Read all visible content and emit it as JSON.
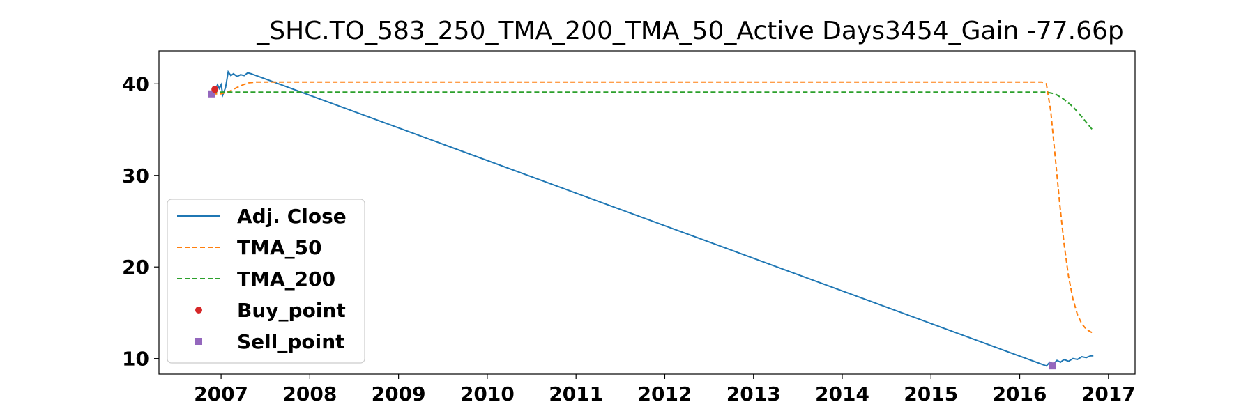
{
  "chart_data": {
    "type": "line",
    "title": "_SHC.TO_583_250_TMA_200_TMA_50_Active Days3454_Gain -77.66p",
    "xlabel": "",
    "ylabel": "",
    "xlim": [
      2006.3,
      2017.3
    ],
    "ylim": [
      8.3,
      43.6
    ],
    "x_ticks": [
      2007,
      2008,
      2009,
      2010,
      2011,
      2012,
      2013,
      2014,
      2015,
      2016,
      2017
    ],
    "y_ticks": [
      10,
      20,
      30,
      40
    ],
    "grid": false,
    "legend_position": "lower-left",
    "series": [
      {
        "name": "Adj. Close",
        "color": "#1f77b4",
        "style": "solid",
        "points": [
          [
            2006.9,
            39.0
          ],
          [
            2006.93,
            39.3
          ],
          [
            2006.96,
            39.9
          ],
          [
            2006.98,
            39.5
          ],
          [
            2007.0,
            39.9
          ],
          [
            2007.02,
            38.8
          ],
          [
            2007.05,
            39.6
          ],
          [
            2007.08,
            41.3
          ],
          [
            2007.11,
            40.9
          ],
          [
            2007.14,
            41.1
          ],
          [
            2007.18,
            40.8
          ],
          [
            2007.22,
            41.0
          ],
          [
            2007.26,
            40.9
          ],
          [
            2007.3,
            41.2
          ],
          [
            2007.34,
            41.1
          ],
          [
            2016.3,
            9.2
          ],
          [
            2016.34,
            9.6
          ],
          [
            2016.38,
            9.4
          ],
          [
            2016.42,
            9.8
          ],
          [
            2016.46,
            9.6
          ],
          [
            2016.5,
            9.9
          ],
          [
            2016.55,
            9.7
          ],
          [
            2016.6,
            10.0
          ],
          [
            2016.65,
            9.9
          ],
          [
            2016.7,
            10.2
          ],
          [
            2016.75,
            10.1
          ],
          [
            2016.8,
            10.3
          ],
          [
            2016.83,
            10.3
          ]
        ]
      },
      {
        "name": "TMA_50",
        "color": "#ff7f0e",
        "style": "dashed",
        "points": [
          [
            2006.9,
            38.9
          ],
          [
            2007.0,
            38.9
          ],
          [
            2007.1,
            39.2
          ],
          [
            2007.2,
            39.7
          ],
          [
            2007.3,
            40.1
          ],
          [
            2007.4,
            40.2
          ],
          [
            2016.25,
            40.2
          ],
          [
            2016.3,
            40.0
          ],
          [
            2016.35,
            37.0
          ],
          [
            2016.4,
            32.0
          ],
          [
            2016.45,
            27.0
          ],
          [
            2016.5,
            22.5
          ],
          [
            2016.55,
            19.0
          ],
          [
            2016.6,
            16.5
          ],
          [
            2016.65,
            14.8
          ],
          [
            2016.7,
            13.8
          ],
          [
            2016.75,
            13.2
          ],
          [
            2016.8,
            12.9
          ],
          [
            2016.83,
            12.8
          ]
        ]
      },
      {
        "name": "TMA_200",
        "color": "#2ca02c",
        "style": "dashed",
        "points": [
          [
            2006.9,
            39.1
          ],
          [
            2016.3,
            39.1
          ],
          [
            2016.4,
            38.9
          ],
          [
            2016.5,
            38.3
          ],
          [
            2016.6,
            37.5
          ],
          [
            2016.7,
            36.4
          ],
          [
            2016.8,
            35.2
          ],
          [
            2016.83,
            34.9
          ]
        ]
      }
    ],
    "buy_points": {
      "name": "Buy_point",
      "color": "#d62728",
      "points": [
        [
          2006.93,
          39.4
        ]
      ]
    },
    "sell_points": {
      "name": "Sell_point",
      "color": "#9467bd",
      "points": [
        [
          2006.89,
          38.9
        ],
        [
          2016.37,
          9.2
        ]
      ]
    }
  }
}
